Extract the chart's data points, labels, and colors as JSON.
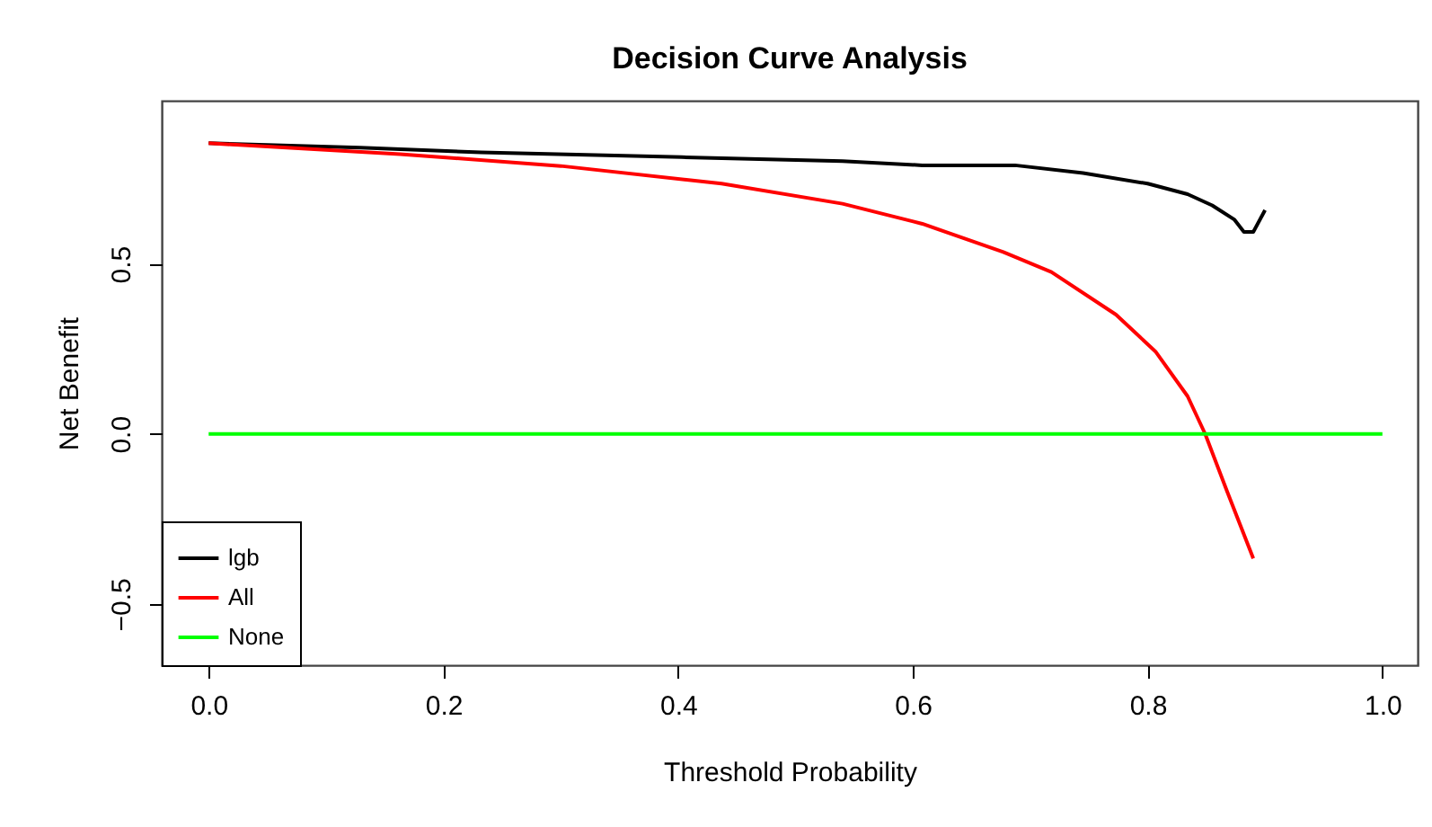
{
  "chart_data": {
    "type": "line",
    "title": "Decision Curve Analysis",
    "xlabel": "Threshold Probability",
    "ylabel": "Net Benefit",
    "xlim": [
      -0.04,
      1.03
    ],
    "ylim": [
      -0.68,
      0.98
    ],
    "xticks": [
      {
        "value": 0,
        "label": "0.0"
      },
      0.2,
      0.4,
      0.6,
      0.8,
      {
        "value": 1,
        "label": "1.0"
      }
    ],
    "yticks": [
      -0.5,
      {
        "value": 0,
        "label": "0.0"
      },
      0.5
    ],
    "grid": false,
    "legend": "bottom left",
    "marker": "none",
    "line_style": "solid",
    "series": [
      {
        "name": "lgb",
        "color": "#000000",
        "x": [
          0,
          0.129,
          0.232,
          0.403,
          0.54,
          0.608,
          0.687,
          0.745,
          0.8,
          0.834,
          0.855,
          0.874,
          0.882,
          0.89,
          0.9
        ],
        "values": [
          0.855,
          0.842,
          0.828,
          0.814,
          0.802,
          0.79,
          0.79,
          0.767,
          0.736,
          0.705,
          0.672,
          0.63,
          0.594,
          0.594,
          0.658
        ]
      },
      {
        "name": "All",
        "color": "#ff0000",
        "x": [
          0,
          0.163,
          0.3,
          0.437,
          0.54,
          0.608,
          0.677,
          0.718,
          0.773,
          0.807,
          0.834,
          0.849,
          0.868,
          0.89
        ],
        "values": [
          0.855,
          0.823,
          0.788,
          0.736,
          0.677,
          0.618,
          0.535,
          0.476,
          0.351,
          0.241,
          0.111,
          0,
          -0.172,
          -0.366
        ]
      },
      {
        "name": "None",
        "color": "#00ff00",
        "x": [
          0,
          1
        ],
        "values": [
          0,
          0
        ]
      }
    ]
  }
}
